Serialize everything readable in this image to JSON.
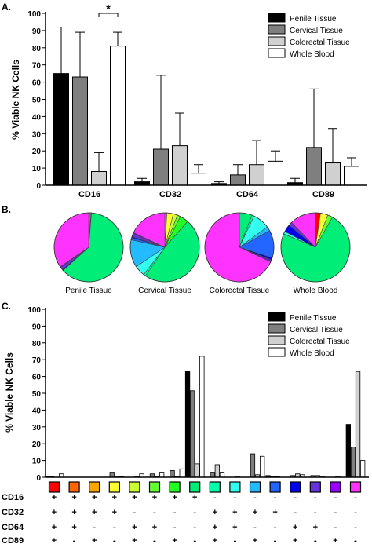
{
  "panels": {
    "a": "A.",
    "b": "B.",
    "c": "C."
  },
  "colors": {
    "penile": "#000000",
    "cervical": "#7f7f7f",
    "colorectal": "#d0d0d0",
    "blood": "#ffffff",
    "pie_slices": [
      "#ff0000",
      "#ff6600",
      "#ffa500",
      "#ffff33",
      "#ccff33",
      "#66ff33",
      "#22ff22",
      "#00ee77",
      "#00ffaa",
      "#33ffee",
      "#22bbff",
      "#2266ff",
      "#0000ee",
      "#6633dd",
      "#9900ff",
      "#ff33ff"
    ]
  },
  "chart_data": [
    {
      "type": "bar",
      "panel": "A.",
      "ylabel": "% Viable NK Cells",
      "ylim": [
        0,
        100
      ],
      "yticks": [
        0,
        10,
        20,
        30,
        40,
        50,
        60,
        70,
        80,
        90,
        100
      ],
      "categories": [
        "CD16",
        "CD32",
        "CD64",
        "CD89"
      ],
      "legend_position": "top-right",
      "significance": {
        "label": "*",
        "category": "CD16",
        "between": [
          "Colorectal Tissue",
          "Whole Blood"
        ]
      },
      "series": [
        {
          "name": "Penile Tissue",
          "values": [
            65,
            2,
            1,
            1.5
          ],
          "errors": [
            27,
            2,
            1,
            2.5
          ]
        },
        {
          "name": "Cervical Tissue",
          "values": [
            63,
            21,
            6,
            22
          ],
          "errors": [
            26,
            43,
            6,
            34
          ]
        },
        {
          "name": "Colorectal Tissue",
          "values": [
            8,
            23,
            12,
            13
          ],
          "errors": [
            11,
            19,
            14,
            20
          ]
        },
        {
          "name": "Whole Blood",
          "values": [
            81,
            7,
            14,
            11
          ],
          "errors": [
            8,
            5,
            6,
            5
          ]
        }
      ]
    },
    {
      "type": "pie",
      "panel": "B.",
      "pies": [
        {
          "label": "Penile Tissue",
          "values": [
            0,
            0,
            0,
            0,
            0.5,
            0.5,
            0.3,
            62,
            0,
            0,
            0,
            0,
            0.5,
            1.2,
            0.5,
            34.5
          ]
        },
        {
          "label": "Cervical Tissue",
          "values": [
            0,
            0,
            1,
            3,
            2,
            1.5,
            4,
            48,
            1,
            5,
            13,
            1,
            0.5,
            1.5,
            0.5,
            18
          ]
        },
        {
          "label": "Colorectal Tissue",
          "values": [
            0,
            0,
            0,
            0,
            0,
            0,
            0,
            6,
            1,
            8,
            2,
            13,
            1,
            0.5,
            0.5,
            68
          ]
        },
        {
          "label": "Whole Blood",
          "values": [
            2,
            0,
            0,
            3,
            0,
            2,
            0,
            63,
            0,
            1,
            0,
            0,
            3,
            1.5,
            0,
            10.5
          ]
        }
      ]
    },
    {
      "type": "bar",
      "panel": "C.",
      "ylabel": "% Viable NK Cells",
      "ylim": [
        0,
        100
      ],
      "yticks": [
        0,
        10,
        20,
        30,
        40,
        50,
        60,
        70,
        80,
        90,
        100
      ],
      "legend_position": "top-right",
      "series": [
        {
          "name": "Penile Tissue",
          "values": [
            0.3,
            0,
            0,
            0,
            0,
            0,
            0,
            63,
            0,
            0,
            0,
            1,
            0,
            0,
            0,
            31.5
          ]
        },
        {
          "name": "Cervical Tissue",
          "values": [
            0.3,
            0,
            0,
            3,
            0,
            2,
            4,
            51.5,
            3,
            0,
            14,
            0.5,
            1,
            1,
            0,
            18
          ]
        },
        {
          "name": "Colorectal Tissue",
          "values": [
            0,
            0,
            0,
            0.5,
            0.5,
            0.5,
            0.5,
            8,
            7.5,
            0.5,
            1.5,
            0.3,
            2,
            1,
            0.5,
            63
          ]
        },
        {
          "name": "Whole Blood",
          "values": [
            2,
            0,
            0,
            0.3,
            2,
            3,
            5,
            72,
            3,
            0,
            12.5,
            0,
            1.5,
            0.5,
            0,
            10
          ]
        }
      ],
      "combination_rows": [
        {
          "label": "CD16",
          "signs": [
            "+",
            "+",
            "+",
            "+",
            "+",
            "+",
            "+",
            "+",
            "-",
            "-",
            "-",
            "-",
            "-",
            "-",
            "-",
            "-"
          ]
        },
        {
          "label": "CD32",
          "signs": [
            "+",
            "+",
            "+",
            "+",
            "-",
            "-",
            "-",
            "-",
            "+",
            "+",
            "+",
            "+",
            "-",
            "-",
            "-",
            "-"
          ]
        },
        {
          "label": "CD64",
          "signs": [
            "+",
            "+",
            "-",
            "-",
            "+",
            "+",
            "-",
            "-",
            "+",
            "+",
            "-",
            "-",
            "+",
            "+",
            "-",
            "-"
          ]
        },
        {
          "label": "CD89",
          "signs": [
            "+",
            "-",
            "+",
            "-",
            "+",
            "-",
            "+",
            "-",
            "+",
            "-",
            "+",
            "-",
            "+",
            "-",
            "+",
            "-"
          ]
        }
      ]
    }
  ]
}
